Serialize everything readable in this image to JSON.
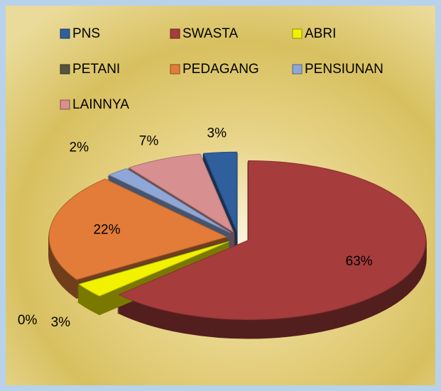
{
  "chart_data": {
    "type": "pie",
    "categories": [
      "PNS",
      "SWASTA",
      "ABRI",
      "PETANI",
      "PEDAGANG",
      "PENSIUNAN",
      "LAINNYA"
    ],
    "values": [
      3,
      63,
      3,
      0,
      22,
      2,
      7
    ],
    "value_labels": [
      "3%",
      "63%",
      "3%",
      "0%",
      "22%",
      "2%",
      "7%"
    ],
    "colors": [
      "#2f5f9c",
      "#a63c3c",
      "#f2f200",
      "#55553f",
      "#e27c38",
      "#8ea7d6",
      "#d78f8f"
    ],
    "legend": "top"
  }
}
